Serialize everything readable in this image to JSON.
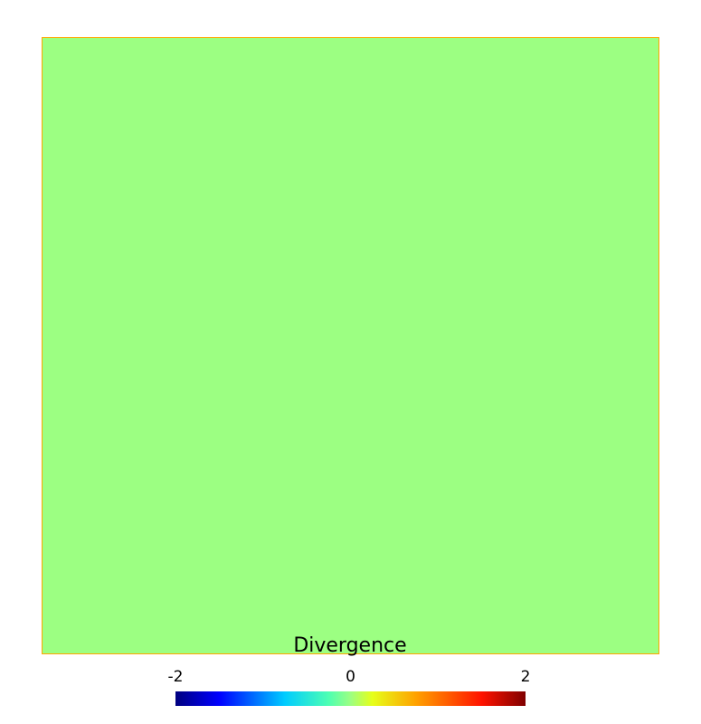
{
  "chart_data": {
    "type": "heatmap",
    "title": "",
    "colorbar": {
      "title": "Divergence",
      "range": [
        -2,
        2
      ],
      "ticks": [
        -2,
        0,
        2
      ],
      "tick_labels": [
        "-2",
        "0",
        "2"
      ],
      "colormap": "jet",
      "orientation": "horizontal",
      "placement": "bottom"
    },
    "field": {
      "uniform_value": 0,
      "display_color": "#9cff82",
      "border_color": "#ffa500"
    },
    "colormap_stops": [
      {
        "value": -2,
        "color": "#00007f"
      },
      {
        "value": -1.5,
        "color": "#0000ff"
      },
      {
        "value": -0.75,
        "color": "#00ccff"
      },
      {
        "value": -0.25,
        "color": "#4dffb3"
      },
      {
        "value": 0,
        "color": "#9cff82"
      },
      {
        "value": 0.25,
        "color": "#e6ff1a"
      },
      {
        "value": 0.75,
        "color": "#ffa100"
      },
      {
        "value": 1.5,
        "color": "#ff1300"
      },
      {
        "value": 2,
        "color": "#7f0000"
      }
    ]
  }
}
